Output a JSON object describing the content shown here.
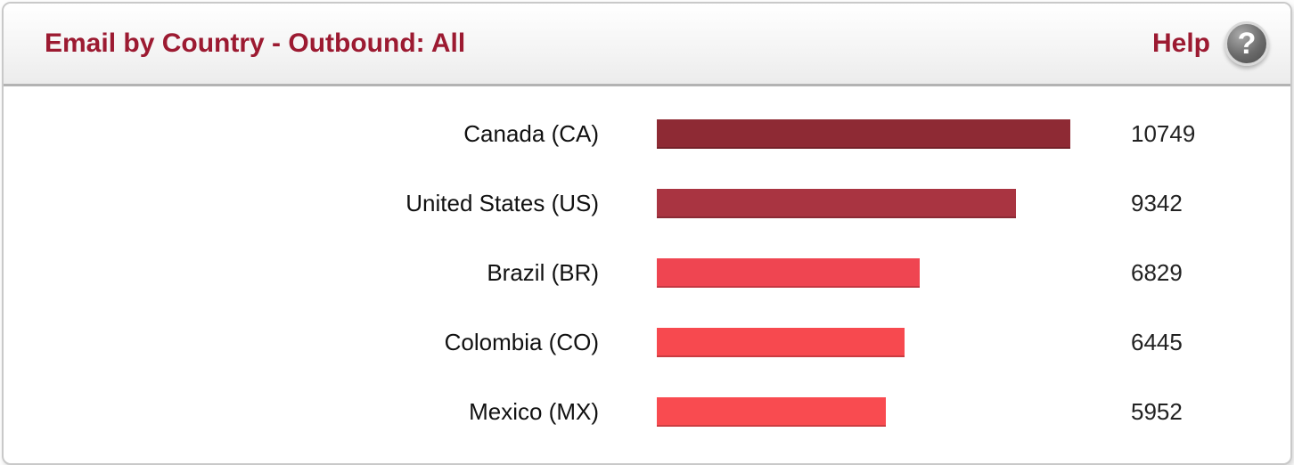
{
  "header": {
    "title": "Email by Country - Outbound: All",
    "help_label": "Help",
    "help_icon": "question-mark-icon",
    "help_icon_glyph": "?"
  },
  "colors": {
    "title_text": "#9c1a31",
    "header_border": "#b3b3b3",
    "card_border": "#c9c9c9",
    "label_text": "#111111",
    "value_text": "#222222"
  },
  "chart_data": {
    "type": "bar",
    "orientation": "horizontal",
    "title": "Email by Country - Outbound: All",
    "categories": [
      "Canada (CA)",
      "United States (US)",
      "Brazil (BR)",
      "Colombia (CO)",
      "Mexico (MX)"
    ],
    "values": [
      10749,
      9342,
      6829,
      6445,
      5952
    ],
    "bar_colors": [
      "#8e2a34",
      "#a93441",
      "#ef4551",
      "#f7494f",
      "#f94b50"
    ],
    "xlim": [
      0,
      10749
    ],
    "grid": false,
    "legend": false,
    "value_labels": "right-of-bar"
  }
}
